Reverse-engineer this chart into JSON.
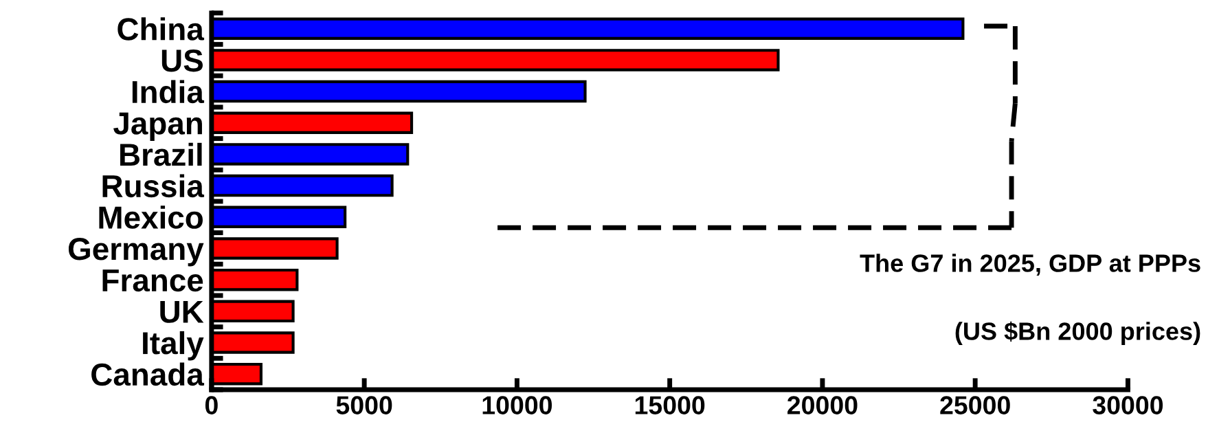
{
  "chart_data": {
    "type": "bar",
    "orientation": "horizontal",
    "categories": [
      "China",
      "US",
      "India",
      "Japan",
      "Brazil",
      "Russia",
      "Mexico",
      "Germany",
      "France",
      "UK",
      "Italy",
      "Canada"
    ],
    "values": [
      24600,
      18550,
      12230,
      6550,
      6420,
      5910,
      4370,
      4110,
      2800,
      2670,
      2670,
      1620
    ],
    "colors": [
      "#0000ff",
      "#ff0000",
      "#0000ff",
      "#ff0000",
      "#0000ff",
      "#0000ff",
      "#0000ff",
      "#ff0000",
      "#ff0000",
      "#ff0000",
      "#ff0000",
      "#ff0000"
    ],
    "xlim": [
      0,
      30000
    ],
    "xticks": [
      0,
      5000,
      10000,
      15000,
      20000,
      25000,
      30000
    ],
    "grid": false,
    "annotations": [
      "The G7 in 2025, GDP at PPPs",
      "(US $Bn 2000 prices)"
    ]
  }
}
